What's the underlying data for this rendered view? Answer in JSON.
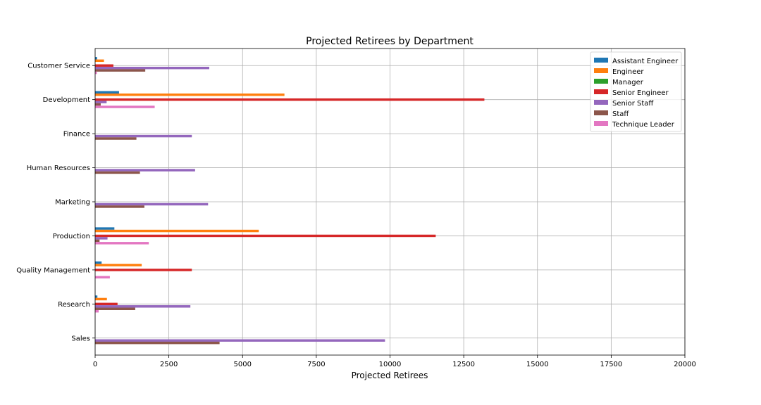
{
  "chart_data": {
    "type": "bar",
    "orientation": "horizontal",
    "title": "Projected Retirees by Department",
    "xlabel": "Projected Retirees",
    "ylabel": "",
    "xlim": [
      0,
      20000
    ],
    "xticks": [
      0,
      2500,
      5000,
      7500,
      10000,
      12500,
      15000,
      17500,
      20000
    ],
    "grid": true,
    "legend_position": "top-right",
    "categories": [
      "Customer Service",
      "Development",
      "Finance",
      "Human Resources",
      "Marketing",
      "Production",
      "Quality Management",
      "Research",
      "Sales"
    ],
    "series": [
      {
        "name": "Assistant Engineer",
        "color": "#1f77b4",
        "values": [
          68,
          811,
          0,
          0,
          0,
          653,
          220,
          77,
          0
        ]
      },
      {
        "name": "Engineer",
        "color": "#ff7f0e",
        "values": [
          300,
          6420,
          0,
          0,
          0,
          5550,
          1580,
          400,
          0
        ]
      },
      {
        "name": "Manager",
        "color": "#2ca02c",
        "values": [
          2,
          2,
          2,
          2,
          2,
          2,
          2,
          2,
          2
        ]
      },
      {
        "name": "Senior Engineer",
        "color": "#d62728",
        "values": [
          620,
          13200,
          0,
          0,
          0,
          11550,
          3280,
          760,
          0
        ]
      },
      {
        "name": "Senior Staff",
        "color": "#9467bd",
        "values": [
          3870,
          390,
          3280,
          3390,
          3830,
          420,
          0,
          3230,
          9830
        ]
      },
      {
        "name": "Staff",
        "color": "#8c564b",
        "values": [
          1700,
          190,
          1400,
          1520,
          1670,
          150,
          0,
          1360,
          4220
        ]
      },
      {
        "name": "Technique Leader",
        "color": "#e377c2",
        "values": [
          60,
          2020,
          0,
          0,
          0,
          1820,
          500,
          120,
          0
        ]
      }
    ]
  }
}
